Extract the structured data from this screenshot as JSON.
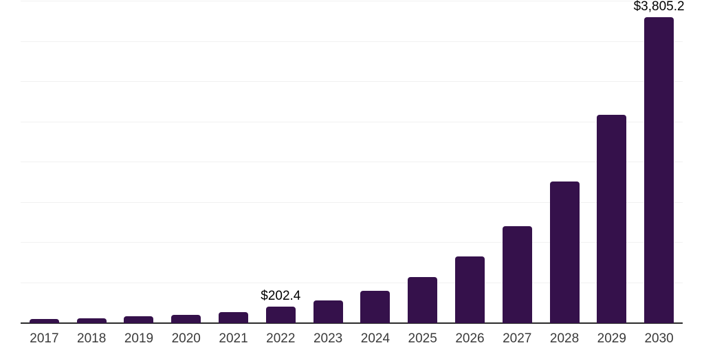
{
  "chart_data": {
    "type": "bar",
    "title": "",
    "xlabel": "",
    "ylabel": "",
    "categories": [
      "2017",
      "2018",
      "2019",
      "2020",
      "2021",
      "2022",
      "2023",
      "2024",
      "2025",
      "2026",
      "2027",
      "2028",
      "2029",
      "2030"
    ],
    "values": [
      52,
      58,
      88,
      105,
      140,
      202.4,
      285,
      400,
      575,
      830,
      1205,
      1760,
      2590,
      3805.2
    ],
    "data_labels": {
      "2022": "$202.4",
      "2030": "$3,805.2"
    },
    "ylim": [
      0,
      4000
    ],
    "gridline_interval": 500,
    "grid": "horizontal",
    "legend": "none",
    "colors": {
      "bar": "#35114b",
      "gridline": "#f1f1f1",
      "axis_line": "#2b2b2b",
      "tick_label": "#3a3a3a",
      "data_label": "#000000",
      "background": "#ffffff"
    }
  }
}
